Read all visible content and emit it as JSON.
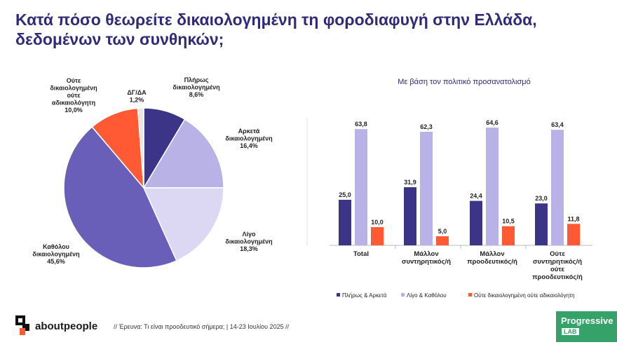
{
  "title": "Κατά πόσο θεωρείτε δικαιολογημένη τη φοροδιαφυγή στην Ελλάδα, δεδομένων των συνθηκών;",
  "bar_subtitle": "Με βάση τον πολιτικό προσανατολισμό",
  "footer": {
    "brand": "aboutpeople",
    "note": "// Έρευνα: Τι είναι προοδευτικό σήμερα; | 14-23 Ιουλίου 2025 //",
    "partner_line1": "Progressive",
    "partner_line2": "LAB"
  },
  "colors": {
    "dark": "#3c3486",
    "mid": "#6a5fb8",
    "light": "#b8b2e6",
    "lighter": "#dcd8f4",
    "orange": "#ff5a33",
    "gray": "#e6e6e6",
    "title": "#2f2a7a"
  },
  "chart_data": [
    {
      "type": "pie",
      "slices": [
        {
          "label": [
            "Πλήρως",
            "δικαιολογημένη"
          ],
          "value": 8.6,
          "value_label": "8,6%",
          "color": "#3c3486"
        },
        {
          "label": [
            "Αρκετά",
            "δικαιολογημένη"
          ],
          "value": 16.4,
          "value_label": "16,4%",
          "color": "#b8b2e6"
        },
        {
          "label": [
            "Λίγο",
            "δικαιολογημένη"
          ],
          "value": 18.3,
          "value_label": "18,3%",
          "color": "#dcd8f4"
        },
        {
          "label": [
            "Καθόλου",
            "δικαιολογημένη"
          ],
          "value": 45.6,
          "value_label": "45,6%",
          "color": "#6a5fb8"
        },
        {
          "label": [
            "Ούτε",
            "δικαιολογημένη",
            "ούτε",
            "αδικαιολόγητη"
          ],
          "value": 10.0,
          "value_label": "10,0%",
          "color": "#ff5a33"
        },
        {
          "label": [
            "ΔΓ/ΔΑ"
          ],
          "value": 1.2,
          "value_label": "1,2%",
          "color": "#e6e6e6"
        }
      ]
    },
    {
      "type": "bar",
      "title": "Με βάση τον πολιτικό προσανατολισμό",
      "categories": [
        [
          "Total"
        ],
        [
          "Μάλλον",
          "συντηρητικός/ή"
        ],
        [
          "Μάλλον",
          "προοδευτικός/ή"
        ],
        [
          "Ούτε",
          "συντηρητικός/ή",
          "ούτε",
          "προοδευτικός/ή"
        ]
      ],
      "series": [
        {
          "name": "Πλήρως & Αρκετά",
          "color": "#3c3486",
          "values": [
            25.0,
            31.9,
            24.4,
            23.0
          ],
          "labels": [
            "25,0",
            "31,9",
            "24,4",
            "23,0"
          ]
        },
        {
          "name": "Λίγο & Καθόλου",
          "color": "#b8b2e6",
          "values": [
            63.8,
            62.3,
            64.6,
            63.4
          ],
          "labels": [
            "63,8",
            "62,3",
            "64,6",
            "63,4"
          ]
        },
        {
          "name": "Ούτε δικαιολογημένη ούτε αδικαιολόγητη",
          "color": "#ff5a33",
          "values": [
            10.0,
            5.0,
            10.5,
            11.8
          ],
          "labels": [
            "10,0",
            "5,0",
            "10,5",
            "11,8"
          ]
        }
      ],
      "ylim": [
        0,
        70
      ],
      "legend": "bottom"
    }
  ]
}
